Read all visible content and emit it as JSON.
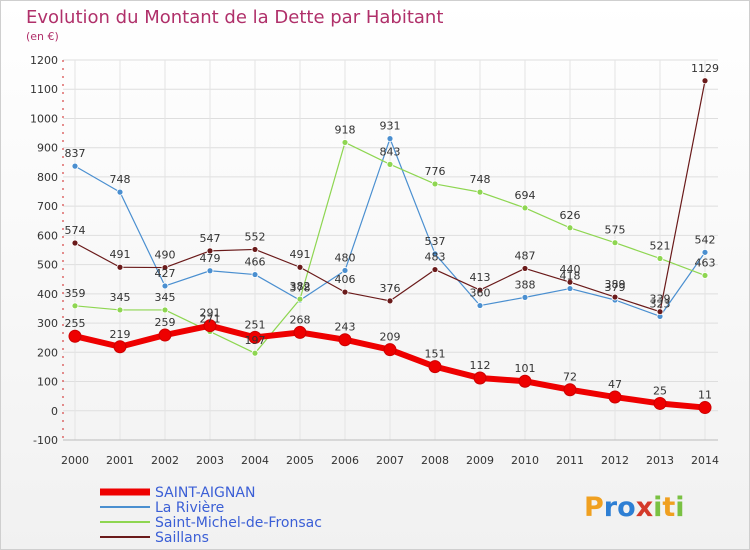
{
  "chart_data": {
    "type": "line",
    "title": "Evolution du Montant de la Dette par Habitant",
    "subtitle": "(en €)",
    "categories": [
      "2000",
      "2001",
      "2002",
      "2003",
      "2004",
      "2005",
      "2006",
      "2007",
      "2008",
      "2009",
      "2010",
      "2011",
      "2012",
      "2013",
      "2014"
    ],
    "ylim": [
      -100,
      1200
    ],
    "yticks": [
      -100,
      0,
      100,
      200,
      300,
      400,
      500,
      600,
      700,
      800,
      900,
      1000,
      1100,
      1200
    ],
    "grid": true,
    "legend_position": "bottom-left",
    "series": [
      {
        "name": "SAINT-AIGNAN",
        "color": "#ee0000",
        "values": [
          255,
          219,
          259,
          291,
          251,
          268,
          243,
          209,
          151,
          112,
          101,
          72,
          47,
          25,
          11
        ]
      },
      {
        "name": "La Rivière",
        "color": "#4a8fd0",
        "values": [
          837,
          748,
          427,
          479,
          466,
          378,
          480,
          931,
          537,
          360,
          388,
          418,
          379,
          323,
          542
        ]
      },
      {
        "name": "Saint-Michel-de-Fronsac",
        "color": "#8ed651",
        "values": [
          359,
          345,
          345,
          271,
          197,
          382,
          918,
          843,
          776,
          748,
          694,
          626,
          575,
          521,
          463
        ]
      },
      {
        "name": "Saillans",
        "color": "#6a1a1a",
        "values": [
          574,
          491,
          490,
          547,
          552,
          491,
          406,
          376,
          483,
          413,
          487,
          440,
          389,
          339,
          1129
        ]
      }
    ]
  },
  "branding": {
    "text": "Proxiti"
  }
}
